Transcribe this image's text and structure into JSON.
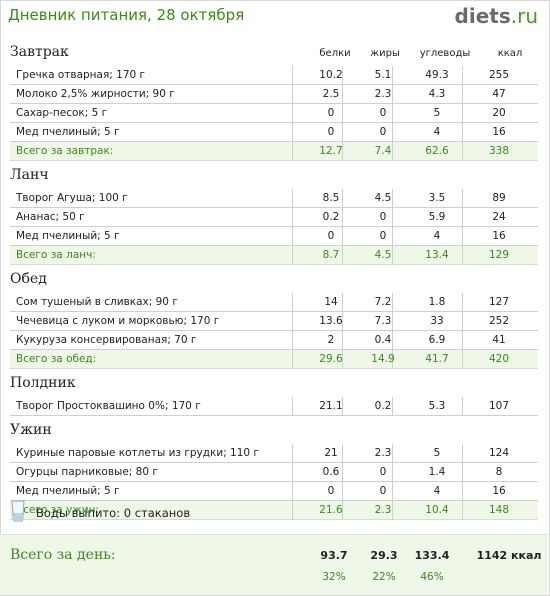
{
  "header": {
    "title": "Дневник питания, 28 октября",
    "logo_main": "diets",
    "logo_suffix": ".ru"
  },
  "columns": {
    "protein": "белки",
    "fat": "жиры",
    "carbs": "углеводы",
    "kcal": "ккал"
  },
  "sections": [
    {
      "title": "Завтрак",
      "items": [
        {
          "name": "Гречка отварная; 170 г",
          "p": "10.2",
          "f": "5.1",
          "c": "49.3",
          "k": "255"
        },
        {
          "name": "Молоко 2,5% жирности; 90 г",
          "p": "2.5",
          "f": "2.3",
          "c": "4.3",
          "k": "47"
        },
        {
          "name": "Сахар-песок; 5 г",
          "p": "0",
          "f": "0",
          "c": "5",
          "k": "20"
        },
        {
          "name": "Мед пчелиный; 5 г",
          "p": "0",
          "f": "0",
          "c": "4",
          "k": "16"
        }
      ],
      "total": {
        "name": "Всего за завтрак:",
        "p": "12.7",
        "f": "7.4",
        "c": "62.6",
        "k": "338"
      }
    },
    {
      "title": "Ланч",
      "items": [
        {
          "name": "Творог Агуша; 100 г",
          "p": "8.5",
          "f": "4.5",
          "c": "3.5",
          "k": "89"
        },
        {
          "name": "Ананас; 50 г",
          "p": "0.2",
          "f": "0",
          "c": "5.9",
          "k": "24"
        },
        {
          "name": "Мед пчелиный; 5 г",
          "p": "0",
          "f": "0",
          "c": "4",
          "k": "16"
        }
      ],
      "total": {
        "name": "Всего за ланч:",
        "p": "8.7",
        "f": "4.5",
        "c": "13.4",
        "k": "129"
      }
    },
    {
      "title": "Обед",
      "items": [
        {
          "name": "Сом тушеный в сливках; 90 г",
          "p": "14",
          "f": "7.2",
          "c": "1.8",
          "k": "127"
        },
        {
          "name": "Чечевица с луком и морковью; 170 г",
          "p": "13.6",
          "f": "7.3",
          "c": "33",
          "k": "252"
        },
        {
          "name": "Кукуруза консервированая; 70 г",
          "p": "2",
          "f": "0.4",
          "c": "6.9",
          "k": "41"
        }
      ],
      "total": {
        "name": "Всего за обед:",
        "p": "29.6",
        "f": "14.9",
        "c": "41.7",
        "k": "420"
      }
    },
    {
      "title": "Полдник",
      "items": [
        {
          "name": "Творог Простоквашино 0%; 170 г",
          "p": "21.1",
          "f": "0.2",
          "c": "5.3",
          "k": "107"
        }
      ],
      "total": null
    },
    {
      "title": "Ужин",
      "items": [
        {
          "name": "Куриные паровые котлеты из грудки; 110 г",
          "p": "21",
          "f": "2.3",
          "c": "5",
          "k": "124"
        },
        {
          "name": "Огурцы парниковые; 80 г",
          "p": "0.6",
          "f": "0",
          "c": "1.4",
          "k": "8"
        },
        {
          "name": "Мед пчелиный; 5 г",
          "p": "0",
          "f": "0",
          "c": "4",
          "k": "16"
        }
      ],
      "total": {
        "name": "Всего за ужин:",
        "p": "21.6",
        "f": "2.3",
        "c": "10.4",
        "k": "148"
      }
    }
  ],
  "water": {
    "label": "Воды выпито:",
    "value": "0 стаканов"
  },
  "day_total": {
    "title": "Всего за день:",
    "p": "93.7",
    "f": "29.3",
    "c": "133.4",
    "k": "1142 ккал",
    "p_pct": "32%",
    "f_pct": "22%",
    "c_pct": "46%"
  },
  "colors": {
    "accent": "#3a8a1a",
    "total_bg": "#eef7e8"
  }
}
